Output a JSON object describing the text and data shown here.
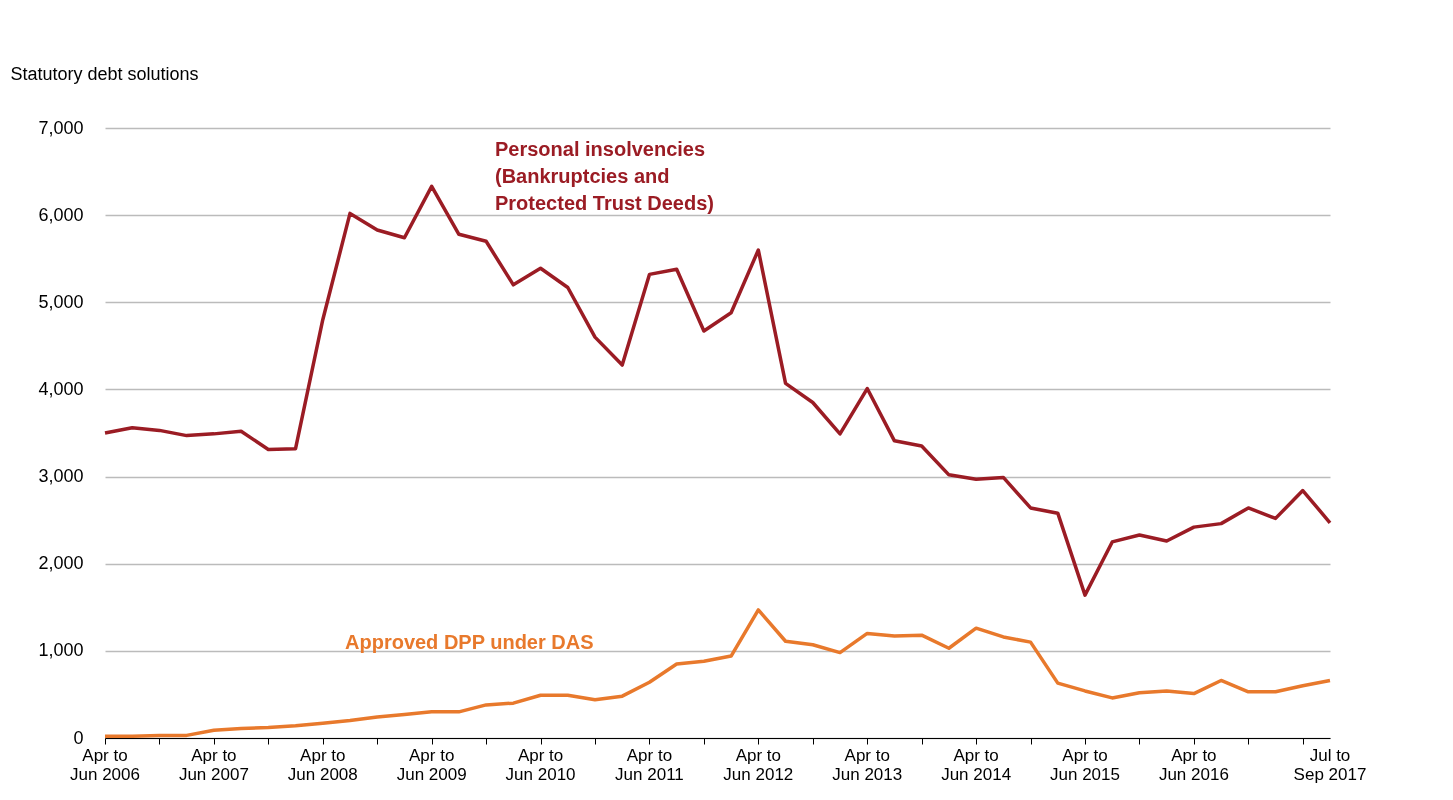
{
  "chart_data": {
    "type": "line",
    "ylabel": "Statutory debt solutions",
    "categories": [
      "Apr to\nJun 2006",
      null,
      null,
      null,
      "Apr to\nJun 2007",
      null,
      null,
      null,
      "Apr to\nJun 2008",
      null,
      null,
      null,
      "Apr to\nJun 2009",
      null,
      null,
      null,
      "Apr to\nJun 2010",
      null,
      null,
      null,
      "Apr to\nJun 2011",
      null,
      null,
      null,
      "Apr to\nJun 2012",
      null,
      null,
      null,
      "Apr to\nJun 2013",
      null,
      null,
      null,
      "Apr to\nJun 2014",
      null,
      null,
      null,
      "Apr to\nJun 2015",
      null,
      null,
      null,
      "Apr to\nJun 2016",
      null,
      null,
      null,
      null,
      "Jul to\nSep 2017"
    ],
    "series": [
      {
        "name": "Personal insolvencies\n(Bankruptcies and\nProtected Trust Deeds)",
        "color": "#9b1c24",
        "values": [
          3500,
          3560,
          3530,
          3470,
          3490,
          3520,
          3310,
          3320,
          4800,
          6020,
          5830,
          5740,
          6330,
          5780,
          5700,
          5200,
          5390,
          5170,
          4600,
          4280,
          5320,
          5380,
          4670,
          4880,
          5600,
          4070,
          3850,
          3490,
          4010,
          3410,
          3350,
          3020,
          2970,
          2990,
          2640,
          2580,
          1640,
          2250,
          2330,
          2260,
          2420,
          2460,
          2640,
          2520,
          2840,
          2470
        ]
      },
      {
        "name": "Approved DPP under DAS",
        "color": "#e8792c",
        "values": [
          20,
          20,
          30,
          30,
          90,
          110,
          120,
          140,
          170,
          200,
          240,
          270,
          300,
          300,
          380,
          400,
          490,
          490,
          440,
          480,
          640,
          850,
          880,
          940,
          1470,
          1110,
          1070,
          980,
          1200,
          1170,
          1180,
          1030,
          1260,
          1160,
          1100,
          630,
          540,
          460,
          520,
          540,
          510,
          660,
          530,
          530,
          600,
          660
        ]
      }
    ],
    "ylim": [
      0,
      7000
    ],
    "yticks": [
      0,
      {
        "value": 1000,
        "label": "1,000"
      },
      {
        "value": 2000,
        "label": "2,000"
      },
      {
        "value": 3000,
        "label": "3,000"
      },
      {
        "value": 4000,
        "label": "4,000"
      },
      {
        "value": 5000,
        "label": "5,000"
      },
      {
        "value": 6000,
        "label": "6,000"
      },
      {
        "value": 7000,
        "label": "7,000"
      }
    ],
    "grid": "y",
    "marker": "none",
    "line_style": "solid"
  }
}
